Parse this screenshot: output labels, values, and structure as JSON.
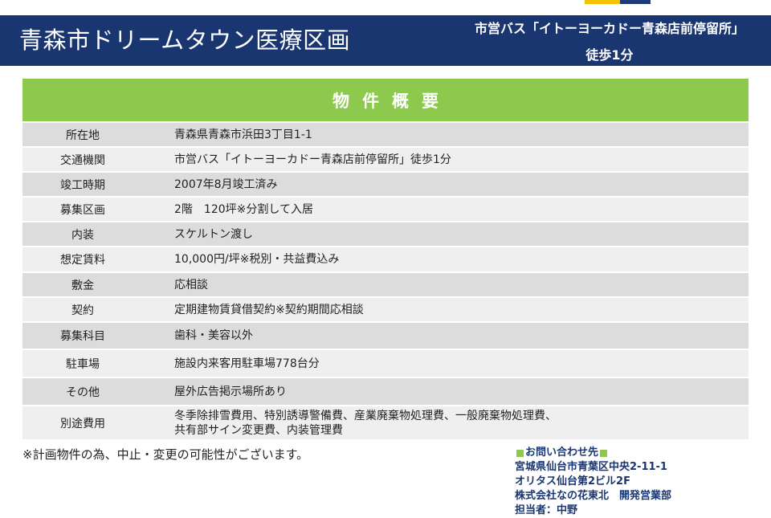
{
  "header": {
    "title": "青森市ドリームタウン医療区画",
    "bus_stop": "市営バス「イトーヨーカドー青森店前停留所」",
    "walk": "徒歩1分"
  },
  "summary": {
    "title": "物件概要"
  },
  "spec_rows": [
    {
      "label": "所在地",
      "value": "青森県青森市浜田3丁目1-1"
    },
    {
      "label": "交通機関",
      "value": "市営バス「イトーヨーカドー青森店前停留所」徒歩1分"
    },
    {
      "label": "竣工時期",
      "value": "2007年8月竣工済み"
    },
    {
      "label": "募集区画",
      "value": "2階　120坪※分割して入居"
    },
    {
      "label": "内装",
      "value": "スケルトン渡し"
    },
    {
      "label": "想定賃料",
      "value": "10,000円/坪※税別・共益費込み"
    },
    {
      "label": "敷金",
      "value": "応相談"
    },
    {
      "label": "契約",
      "value": "定期建物賃貸借契約※契約期間応相談"
    },
    {
      "label": "募集科目",
      "value": "歯科・美容以外"
    },
    {
      "label": "駐車場",
      "value": "施設内来客用駐車場778台分"
    },
    {
      "label": "その他",
      "value": "屋外広告掲示場所あり"
    },
    {
      "label": "別途費用",
      "value_line1": "冬季除排雪費用、特別誘導警備費、産業廃棄物処理費、一般廃棄物処理費、",
      "value_line2": "共有部サイン変更費、内装管理費"
    }
  ],
  "notice": "※計画物件の為、中止・変更の可能性がございます。",
  "contact": {
    "heading": "お問い合わせ先",
    "address": "宮城県仙台市青葉区中央2-11-1",
    "building": "オリタス仙台第2ビル2F",
    "company": "株式会社なの花東北　開発営業部",
    "person": "担当者：中野"
  },
  "colors": {
    "header_navy": "#1a3670",
    "summary_green": "#8dc94c",
    "row_dark": "#dcdcdc",
    "row_light": "#efefef"
  }
}
